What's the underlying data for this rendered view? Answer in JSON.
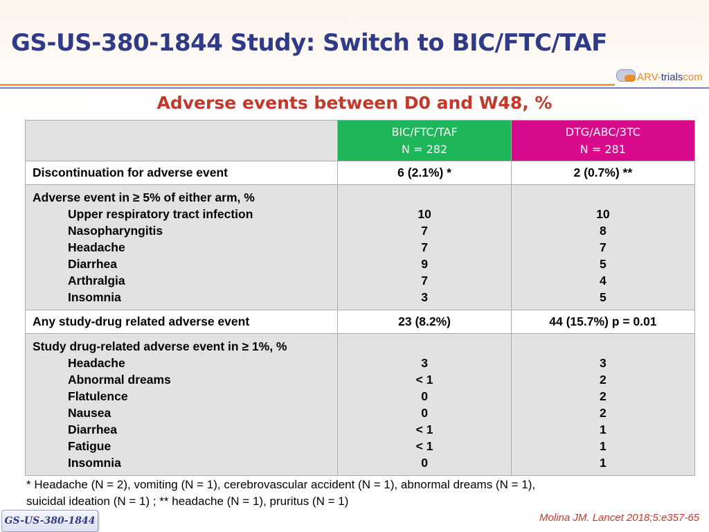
{
  "title": "GS-US-380-1844 Study: Switch to BIC/FTC/TAF",
  "logo": {
    "part1": "ARV-",
    "part2": "trials",
    "part3": "com"
  },
  "subtitle": "Adverse events between D0 and W48, %",
  "table": {
    "arms": [
      {
        "name": "BIC/FTC/TAF",
        "n": "N = 282",
        "color": "#1fb65a"
      },
      {
        "name": "DTG/ABC/3TC",
        "n": "N = 281",
        "color": "#d70b8c"
      }
    ],
    "discontinuation": {
      "label": "Discontinuation for adverse event",
      "bic": "6 (2.1%) *",
      "dtg": "2 (0.7%) **"
    },
    "ae5": {
      "header": "Adverse event in ≥ 5% of either arm, %",
      "rows": [
        {
          "label": "Upper respiratory tract infection",
          "bic": "10",
          "dtg": "10"
        },
        {
          "label": "Nasopharyngitis",
          "bic": "7",
          "dtg": "8"
        },
        {
          "label": "Headache",
          "bic": "7",
          "dtg": "7"
        },
        {
          "label": "Diarrhea",
          "bic": "9",
          "dtg": "5"
        },
        {
          "label": "Arthralgia",
          "bic": "7",
          "dtg": "4"
        },
        {
          "label": "Insomnia",
          "bic": "3",
          "dtg": "5"
        }
      ]
    },
    "related": {
      "label": "Any study-drug related adverse event",
      "bic": "23 (8.2%)",
      "dtg": "44 (15.7%) p = 0.01"
    },
    "related1": {
      "header": "Study drug-related adverse event in ≥ 1%, %",
      "rows": [
        {
          "label": "Headache",
          "bic": "3",
          "dtg": "3"
        },
        {
          "label": "Abnormal dreams",
          "bic": "< 1",
          "dtg": "2"
        },
        {
          "label": "Flatulence",
          "bic": "0",
          "dtg": "2"
        },
        {
          "label": "Nausea",
          "bic": "0",
          "dtg": "2"
        },
        {
          "label": "Diarrhea",
          "bic": "< 1",
          "dtg": "1"
        },
        {
          "label": "Fatigue",
          "bic": "< 1",
          "dtg": "1"
        },
        {
          "label": "Insomnia",
          "bic": "0",
          "dtg": "1"
        }
      ]
    }
  },
  "footnote": {
    "line1": "* Headache (N = 2), vomiting (N = 1), cerebrovascular accident (N = 1), abnormal dreams (N = 1),",
    "line2": "suicidal ideation (N = 1) ; ** headache (N = 1), pruritus (N = 1)"
  },
  "citation": "Molina JM. Lancet 2018;5:e357-65",
  "badge": "GS-US-380-1844",
  "colors": {
    "title": "#2f3b87",
    "subtitle": "#c0392b",
    "accent_orange": "#e8a245"
  }
}
